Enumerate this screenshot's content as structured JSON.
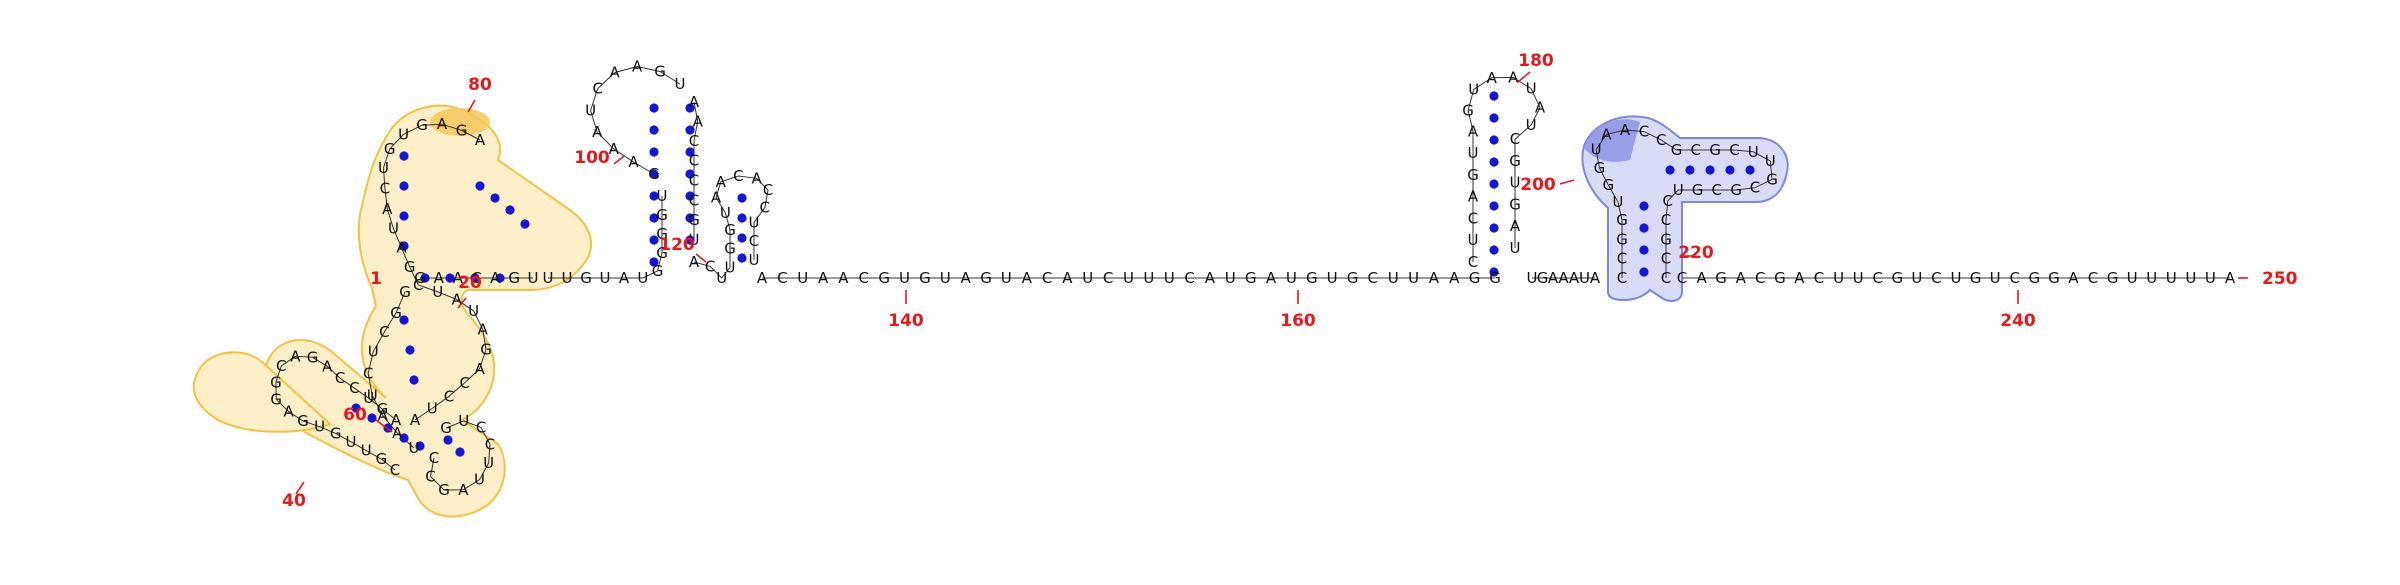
{
  "colors": {
    "nucleotide": "#111111",
    "backbone": "#333333",
    "pair_dot": "#1515d6",
    "index_label": "#e8171c",
    "highlight_yellow_fill": "#fdf0c8",
    "highlight_yellow_stroke": "#f2c244",
    "highlight_yellow_dark": "#f6c75a",
    "highlight_blue_fill": "#d8dcf6",
    "highlight_blue_stroke": "#7f86de",
    "highlight_blue_dark": "#8d93e4"
  },
  "structure": {
    "length": 250,
    "segments": [
      {
        "id": "5-prime-strand",
        "sequence": "GAACAGU",
        "start_index": 2
      },
      {
        "id": "helix-20-left",
        "sequence": "GGCUCUAAU",
        "start_index": 21
      },
      {
        "id": "loop-40",
        "sequence": "CGUUGUGAGGCAGACCUGA",
        "start_index": 33
      },
      {
        "id": "loop-60-return",
        "sequence": "CCGAUUCCUG",
        "start_index": 52
      },
      {
        "id": "hairpin-80",
        "sequence": "AUCCAGAUAUCGAUACUGUGAGA",
        "start_index": 72
      },
      {
        "id": "hairpin-100-left",
        "sequence": "UUGUAUGGGGU",
        "start_index": 92
      },
      {
        "id": "hairpin-100-loop",
        "sequence": "GAAAUCAAGU",
        "start_index": 102
      },
      {
        "id": "hairpin-100-right",
        "sequence": "AACCCCGU",
        "start_index": 110
      },
      {
        "id": "hairpin-120",
        "sequence": "ACUUGGUAACACCUCU",
        "start_index": 118
      },
      {
        "id": "linker-140-160",
        "sequence": "ACUAACGUGUAGUACAUCUUUCAUGAUGUGCUUAAGG",
        "start_index": 132
      },
      {
        "id": "hairpin-180",
        "sequence": "CUCAGUAGUAAUAUCGUGAU",
        "start_index": 168
      },
      {
        "id": "linker-200",
        "sequence": "UGAAAUA",
        "start_index": 188
      },
      {
        "id": "hairpin-200-220",
        "sequence": "CCGGUGGUAACCGCGCUUGCGCGUCCGCC",
        "start_index": 195
      },
      {
        "id": "3-prime-tail",
        "sequence": "CAGACGACUUCGUCUGUCGGACGUUUUUA",
        "start_index": 222
      }
    ],
    "index_labels": [
      "1",
      "20",
      "40",
      "60",
      "80",
      "100",
      "120",
      "140",
      "160",
      "180",
      "200",
      "220",
      "240",
      "250"
    ]
  }
}
